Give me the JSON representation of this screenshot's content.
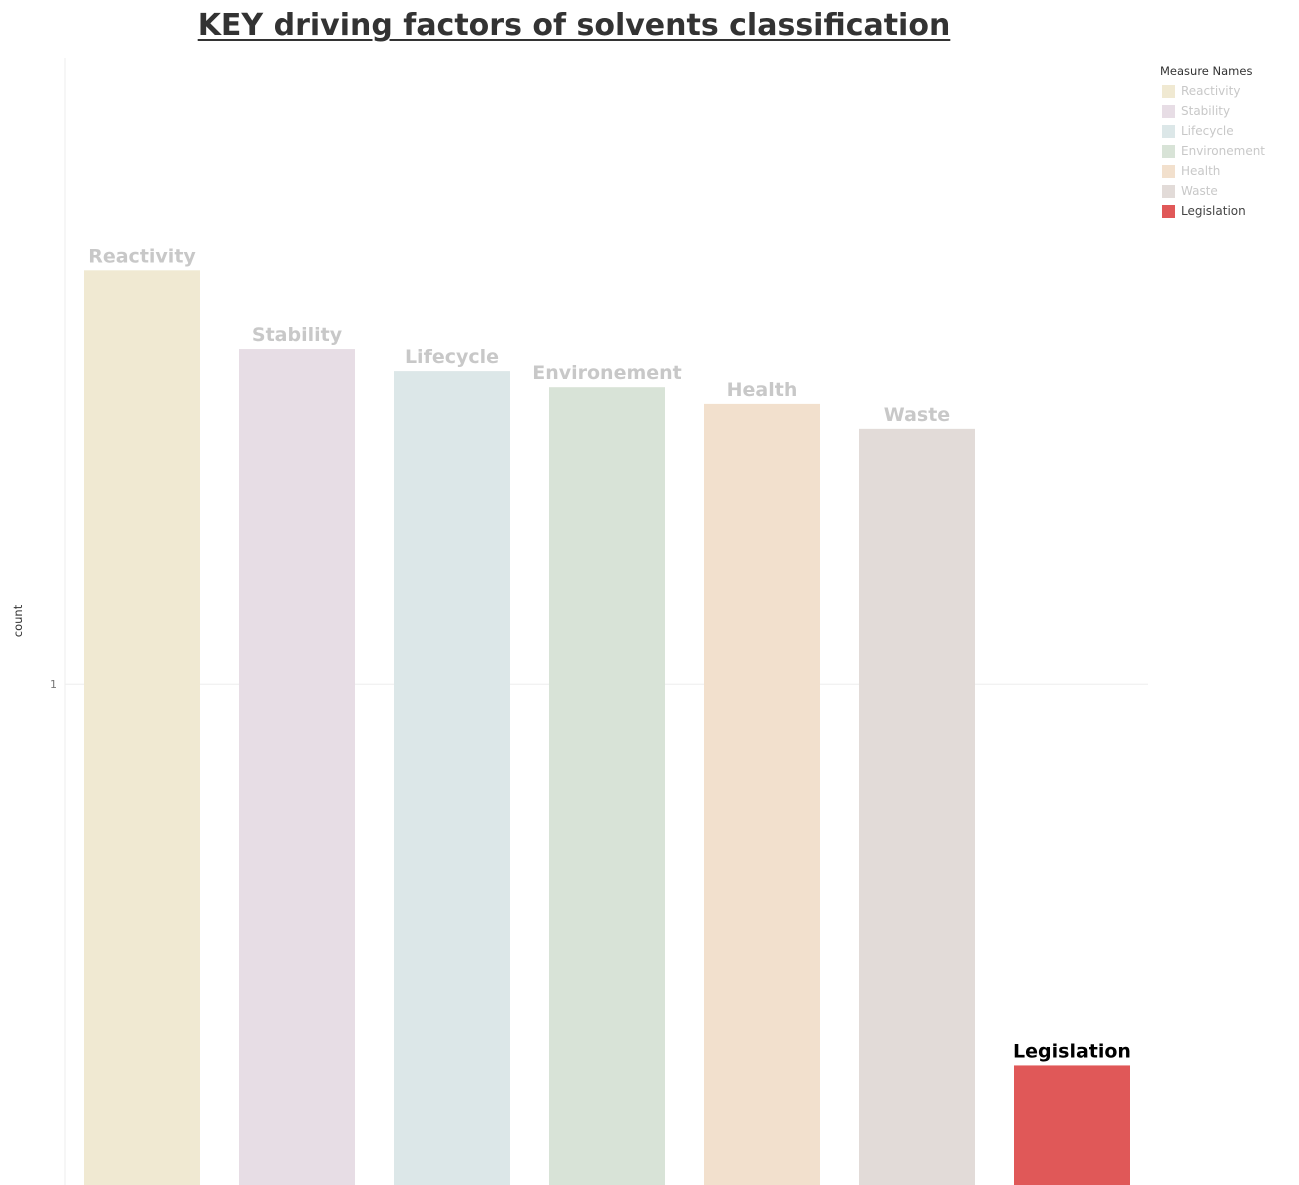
{
  "chart_data": {
    "type": "bar",
    "title": "KEY driving factors of solvents classification",
    "xlabel": "",
    "ylabel": "count",
    "y_scale": "log",
    "y_ticks": [
      1
    ],
    "y_tick_labels": [
      "1"
    ],
    "ylim": [
      0.33,
      4
    ],
    "grid": true,
    "legend_position": "right",
    "legend_title": "Measure Names",
    "categories": [
      "Reactivity",
      "Stability",
      "Lifecycle",
      "Environement",
      "Health",
      "Waste",
      "Legislation"
    ],
    "values": [
      2.5,
      2.1,
      2.0,
      1.93,
      1.86,
      1.76,
      0.43
    ],
    "colors": [
      "#F0E9D2",
      "#E7DDE5",
      "#DCE7E8",
      "#D8E3D7",
      "#F2E0CD",
      "#E2DBD8",
      "#E05858"
    ],
    "highlighted": "Legislation",
    "label_color_default": "#C8C8C8",
    "label_color_highlight": "#000000",
    "legend_label_color_default": "#C8C8C8",
    "legend_label_color_highlight": "#444444",
    "gridline_color": "#EEEEEE",
    "axis_text_color": "#777777"
  }
}
